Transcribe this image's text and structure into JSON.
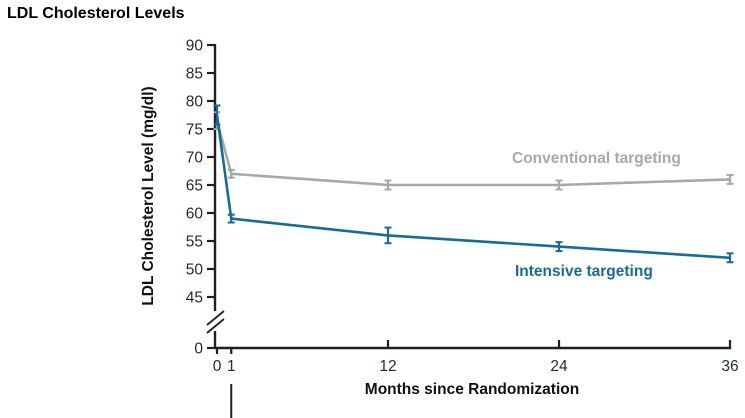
{
  "title": "LDL Cholesterol Levels",
  "colors": {
    "axis": "#231f20",
    "tick_label": "#1c2b3a",
    "conventional": "#a6a8ab",
    "intensive": "#176b96"
  },
  "chart_data": {
    "type": "line",
    "title": "LDL Cholesterol Levels",
    "xlabel": "Months since Randomization",
    "ylabel": "LDL Cholesterol Level (mg/dl)",
    "x": [
      0,
      1,
      12,
      24,
      36
    ],
    "x_tick_labels": [
      "0",
      "1",
      "12",
      "24",
      "36"
    ],
    "y_tick_values": [
      90,
      85,
      80,
      75,
      70,
      65,
      60,
      55,
      50,
      45
    ],
    "y_origin_label": "0",
    "axis_break": true,
    "xlim": [
      0,
      36
    ],
    "ylim": [
      45,
      90
    ],
    "grid": false,
    "legend_position": "inline-labels",
    "annotations": {
      "month1_reference_line": true
    },
    "series": [
      {
        "name": "Conventional targeting",
        "color": "#a6a8ab",
        "values": [
          76.5,
          67,
          65,
          65,
          66
        ],
        "errors": [
          1.5,
          0.7,
          0.8,
          0.8,
          0.8
        ]
      },
      {
        "name": "Intensive targeting",
        "color": "#176b96",
        "values": [
          77.5,
          59,
          56,
          54,
          52
        ],
        "errors": [
          1.7,
          0.7,
          1.4,
          0.8,
          0.8
        ]
      }
    ]
  }
}
